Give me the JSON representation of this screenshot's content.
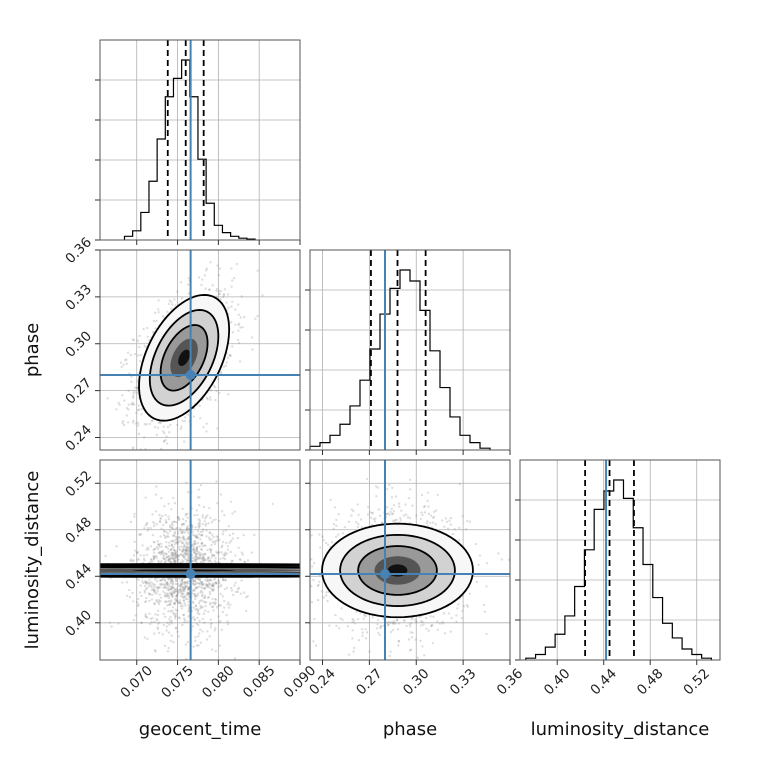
{
  "colors": {
    "truth": "#4682b4",
    "histogram": "#000000",
    "grid": "#b0b0b0",
    "density_fill": [
      "#f7f7f7",
      "#d2d2d2",
      "#999999",
      "#555555",
      "#111111"
    ]
  },
  "chart_data": {
    "type": "corner",
    "grid": true,
    "parameters": [
      {
        "name": "geocent_time",
        "label": "geocent_time",
        "range": [
          0.0655,
          0.09
        ],
        "ticks": [
          "0.070",
          "0.075",
          "0.080",
          "0.085",
          "0.090"
        ],
        "tick_values": [
          0.07,
          0.075,
          0.08,
          0.085,
          0.09
        ],
        "truth": 0.0766,
        "quantiles": [
          0.0738,
          0.076,
          0.0782
        ],
        "histogram": {
          "edges": [
            0.0685,
            0.0695,
            0.0705,
            0.0715,
            0.0725,
            0.0735,
            0.0745,
            0.0755,
            0.0765,
            0.0775,
            0.0785,
            0.0795,
            0.0805,
            0.0815,
            0.0825,
            0.0835,
            0.0845
          ],
          "counts": [
            0.02,
            0.05,
            0.15,
            0.32,
            0.55,
            0.78,
            0.88,
            0.98,
            0.78,
            0.44,
            0.2,
            0.08,
            0.04,
            0.02,
            0.01,
            0.005
          ]
        }
      },
      {
        "name": "phase",
        "label": "phase",
        "range": [
          0.232,
          0.36
        ],
        "ticks": [
          "0.24",
          "0.27",
          "0.30",
          "0.33",
          "0.36"
        ],
        "tick_values": [
          0.24,
          0.27,
          0.3,
          0.33,
          0.36
        ],
        "truth": 0.28,
        "quantiles": [
          0.271,
          0.288,
          0.306
        ],
        "histogram": {
          "edges": [
            0.232,
            0.2384,
            0.2448,
            0.2512,
            0.2576,
            0.264,
            0.2704,
            0.2768,
            0.2832,
            0.2896,
            0.296,
            0.3024,
            0.3088,
            0.3152,
            0.3216,
            0.328,
            0.3344,
            0.3408,
            0.3472
          ],
          "counts": [
            0.02,
            0.04,
            0.08,
            0.14,
            0.24,
            0.38,
            0.55,
            0.74,
            0.88,
            0.98,
            0.92,
            0.76,
            0.54,
            0.34,
            0.18,
            0.08,
            0.04,
            0.01
          ]
        }
      },
      {
        "name": "luminosity_distance",
        "label": "luminosity_distance",
        "range": [
          0.368,
          0.54
        ],
        "ticks": [
          "0.40",
          "0.44",
          "0.48",
          "0.52"
        ],
        "tick_values": [
          0.4,
          0.44,
          0.48,
          0.52
        ],
        "truth": 0.442,
        "quantiles": [
          0.424,
          0.445,
          0.466
        ],
        "histogram": {
          "edges": [
            0.373,
            0.3814,
            0.3898,
            0.3982,
            0.4066,
            0.415,
            0.4234,
            0.4318,
            0.4402,
            0.4486,
            0.457,
            0.4654,
            0.4738,
            0.4822,
            0.4906,
            0.499,
            0.5074,
            0.5158,
            0.5242,
            0.5326
          ],
          "counts": [
            0.01,
            0.03,
            0.07,
            0.14,
            0.24,
            0.4,
            0.6,
            0.82,
            0.92,
            0.98,
            0.88,
            0.72,
            0.52,
            0.34,
            0.2,
            0.12,
            0.06,
            0.03,
            0.01
          ]
        }
      }
    ],
    "pairs": [
      {
        "x": "geocent_time",
        "y": "phase",
        "mean": [
          0.0758,
          0.291
        ],
        "std": [
          0.0024,
          0.0175
        ],
        "corr": 0.45
      },
      {
        "x": "geocent_time",
        "y": "luminosity_distance",
        "mean": [
          0.0758,
          0.445
        ],
        "std": [
          0.0024,
          0.021
        ],
        "corr": 0.0
      },
      {
        "x": "phase",
        "y": "luminosity_distance",
        "mean": [
          0.288,
          0.445
        ],
        "std": [
          0.0175,
          0.021
        ],
        "corr": 0.0
      }
    ]
  }
}
